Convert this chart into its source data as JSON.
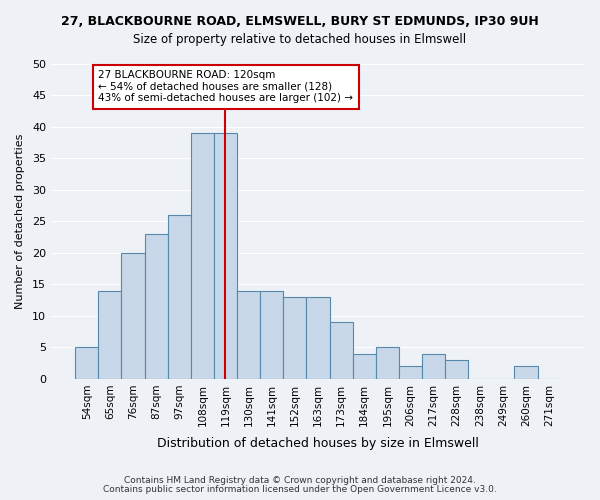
{
  "title": "27, BLACKBOURNE ROAD, ELMSWELL, BURY ST EDMUNDS, IP30 9UH",
  "subtitle": "Size of property relative to detached houses in Elmswell",
  "xlabel": "Distribution of detached houses by size in Elmswell",
  "ylabel": "Number of detached properties",
  "bin_labels": [
    "54sqm",
    "65sqm",
    "76sqm",
    "87sqm",
    "97sqm",
    "108sqm",
    "119sqm",
    "130sqm",
    "141sqm",
    "152sqm",
    "163sqm",
    "173sqm",
    "184sqm",
    "195sqm",
    "206sqm",
    "217sqm",
    "228sqm",
    "238sqm",
    "249sqm",
    "260sqm",
    "271sqm"
  ],
  "values": [
    5,
    14,
    20,
    23,
    26,
    39,
    39,
    14,
    14,
    13,
    13,
    9,
    4,
    5,
    2,
    4,
    3,
    0,
    0,
    2,
    0
  ],
  "bar_color": "#c8d8e8",
  "bar_edge_color": "#5588aa",
  "property_line_x": 6.0,
  "property_line_label": "27 BLACKBOURNE ROAD: 120sqm",
  "annotation_line1": "← 54% of detached houses are smaller (128)",
  "annotation_line2": "43% of semi-detached houses are larger (102) →",
  "annotation_box_color": "#ffffff",
  "annotation_box_edge_color": "#cc0000",
  "vline_color": "#cc0000",
  "ylim": [
    0,
    50
  ],
  "yticks": [
    0,
    5,
    10,
    15,
    20,
    25,
    30,
    35,
    40,
    45,
    50
  ],
  "footnote1": "Contains HM Land Registry data © Crown copyright and database right 2024.",
  "footnote2": "Contains public sector information licensed under the Open Government Licence v3.0.",
  "bg_color": "#eef2f7"
}
